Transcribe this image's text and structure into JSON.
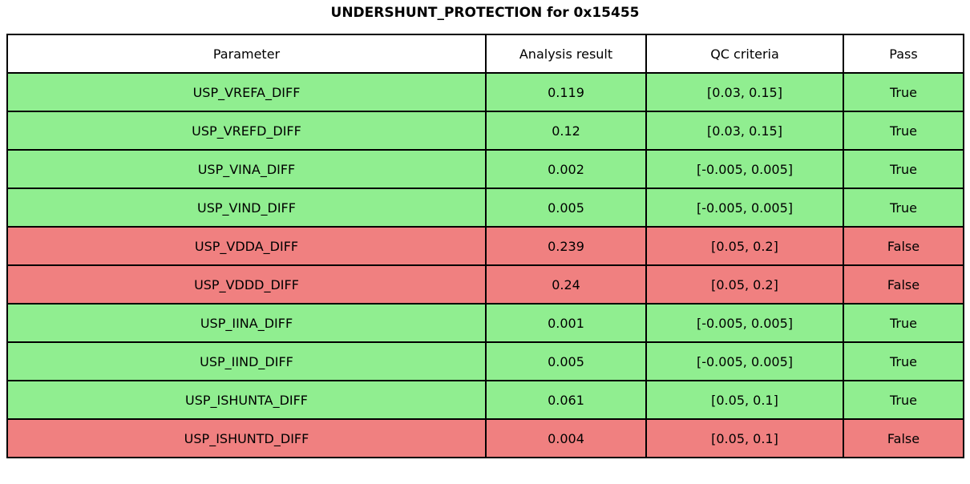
{
  "page_title": "UNDERSHUNT_PROTECTION for 0x15455",
  "colors": {
    "pass_true_bg": "#90EE90",
    "pass_false_bg": "#F08080",
    "header_bg": "#FFFFFF",
    "border": "#000000",
    "text": "#000000"
  },
  "chart_data": {
    "type": "table",
    "title": "UNDERSHUNT_PROTECTION for 0x15455",
    "columns": [
      "Parameter",
      "Analysis result",
      "QC criteria",
      "Pass"
    ],
    "rows": [
      {
        "parameter": "USP_VREFA_DIFF",
        "analysis_result": "0.119",
        "qc_criteria": "[0.03, 0.15]",
        "pass": "True"
      },
      {
        "parameter": "USP_VREFD_DIFF",
        "analysis_result": "0.12",
        "qc_criteria": "[0.03, 0.15]",
        "pass": "True"
      },
      {
        "parameter": "USP_VINA_DIFF",
        "analysis_result": "0.002",
        "qc_criteria": "[-0.005, 0.005]",
        "pass": "True"
      },
      {
        "parameter": "USP_VIND_DIFF",
        "analysis_result": "0.005",
        "qc_criteria": "[-0.005, 0.005]",
        "pass": "True"
      },
      {
        "parameter": "USP_VDDA_DIFF",
        "analysis_result": "0.239",
        "qc_criteria": "[0.05, 0.2]",
        "pass": "False"
      },
      {
        "parameter": "USP_VDDD_DIFF",
        "analysis_result": "0.24",
        "qc_criteria": "[0.05, 0.2]",
        "pass": "False"
      },
      {
        "parameter": "USP_IINA_DIFF",
        "analysis_result": "0.001",
        "qc_criteria": "[-0.005, 0.005]",
        "pass": "True"
      },
      {
        "parameter": "USP_IIND_DIFF",
        "analysis_result": "0.005",
        "qc_criteria": "[-0.005, 0.005]",
        "pass": "True"
      },
      {
        "parameter": "USP_ISHUNTA_DIFF",
        "analysis_result": "0.061",
        "qc_criteria": "[0.05, 0.1]",
        "pass": "True"
      },
      {
        "parameter": "USP_ISHUNTD_DIFF",
        "analysis_result": "0.004",
        "qc_criteria": "[0.05, 0.1]",
        "pass": "False"
      }
    ]
  }
}
